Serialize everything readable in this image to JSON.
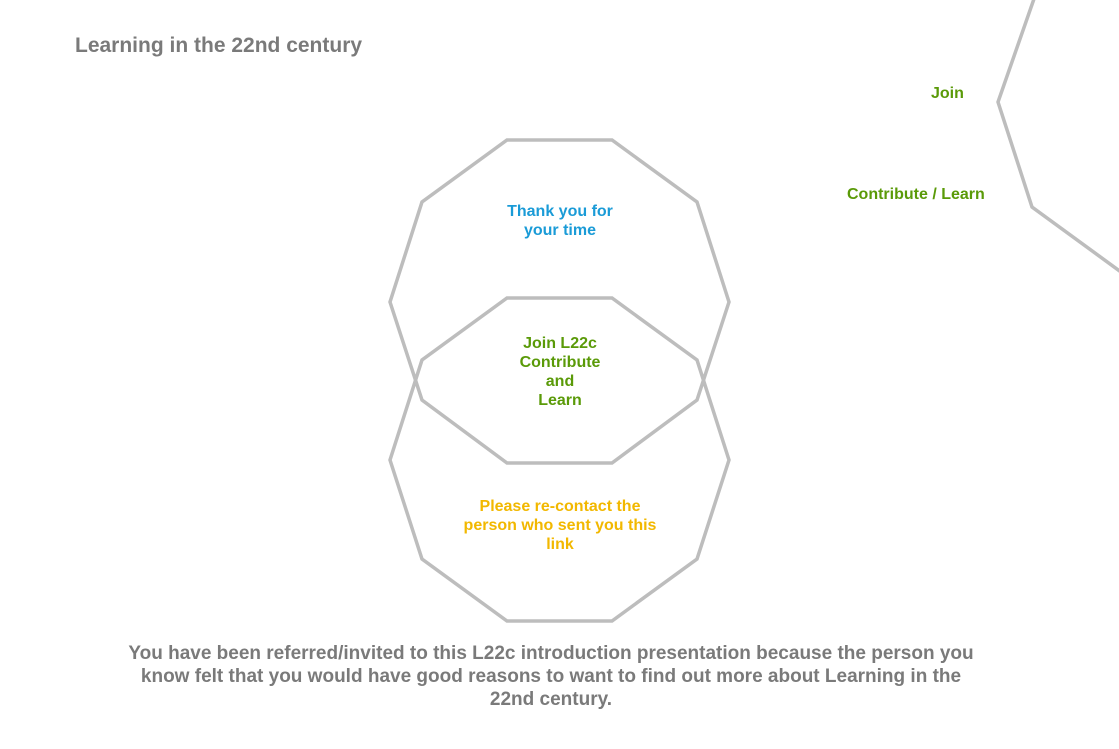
{
  "header": {
    "title": "Learning in the 22nd century"
  },
  "nav": {
    "join_label": "Join",
    "contribute_learn_label": "Contribute / Learn"
  },
  "diagram": {
    "top_shape_text": "Thank you for\nyour time",
    "middle_shape_text": "Join L22c\nContribute\nand\nLearn",
    "bottom_shape_text": "Please re-contact the\nperson who sent you this\nlink"
  },
  "footer": {
    "message": "You have been referred/invited to this L22c introduction presentation because the person you know felt that you would have good reasons to want to find out more about Learning in the 22nd century."
  },
  "colors": {
    "shape_stroke": "#bdbdbd",
    "title_gray": "#7a7a7a",
    "blue": "#1a9bd7",
    "green": "#5a9a08",
    "yellow": "#f2b800"
  }
}
